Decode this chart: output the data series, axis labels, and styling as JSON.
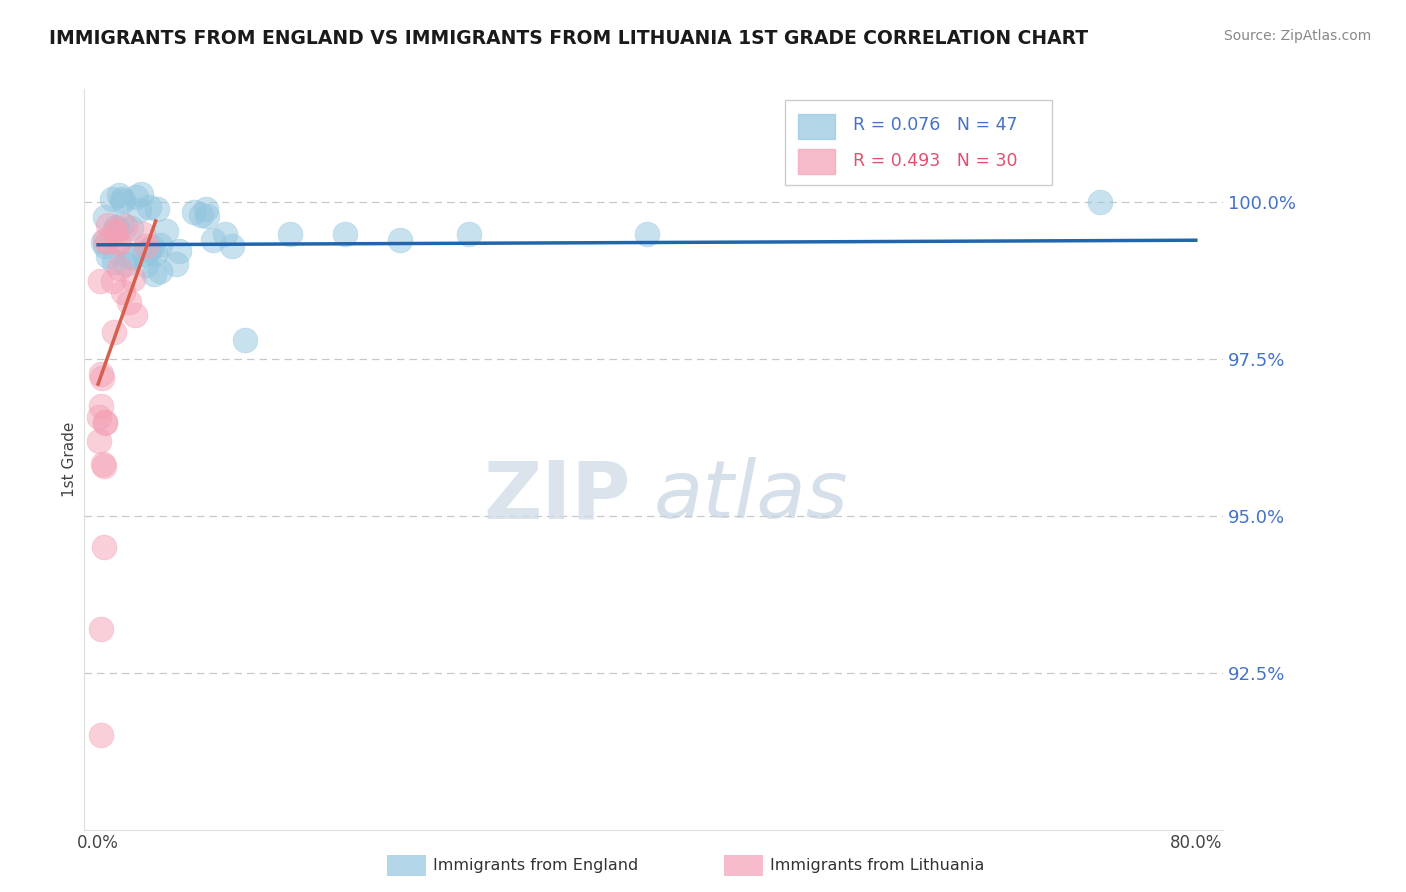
{
  "title": "IMMIGRANTS FROM ENGLAND VS IMMIGRANTS FROM LITHUANIA 1ST GRADE CORRELATION CHART",
  "source": "Source: ZipAtlas.com",
  "ylabel": "1st Grade",
  "ytick_values": [
    100.0,
    97.5,
    95.0,
    92.5
  ],
  "xlim": [
    -1.0,
    82.0
  ],
  "ylim": [
    90.0,
    101.8
  ],
  "england_color": "#92c5de",
  "lithuania_color": "#f4a0b5",
  "england_line_color": "#2166ac",
  "lithuania_line_color": "#d6604d",
  "england_R": "0.076",
  "england_N": "47",
  "lithuania_R": "0.493",
  "lithuania_N": "30",
  "legend_text_color": "#4472c4",
  "ytick_color": "#4472c4",
  "watermark_zip": "ZIP",
  "watermark_atlas": "atlas"
}
